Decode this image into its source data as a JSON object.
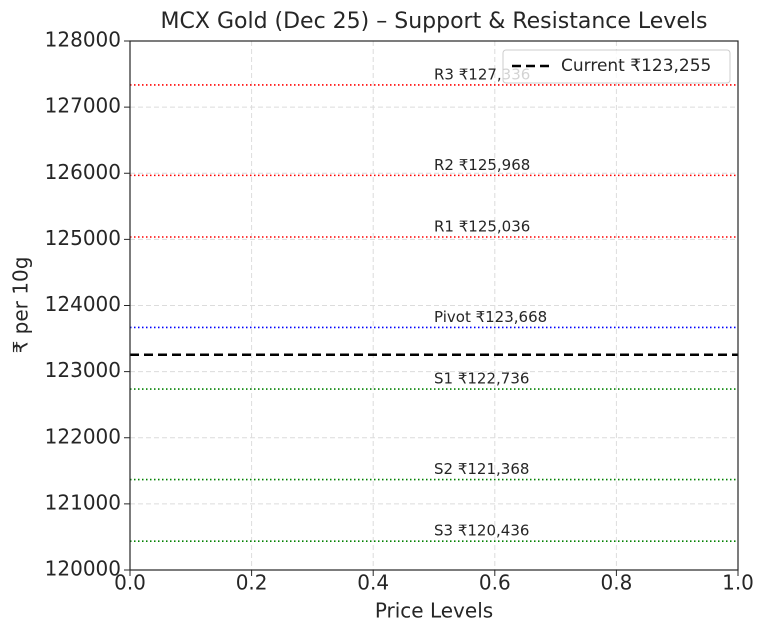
{
  "chart_data": {
    "type": "hline",
    "title": "MCX Gold (Dec 25) – Support & Resistance Levels",
    "xlabel": "Price Levels",
    "ylabel": "₹ per 10g",
    "xlim": [
      0,
      1
    ],
    "xticks": [
      {
        "value": 0,
        "label": "0.0"
      },
      0.2,
      0.4,
      0.6,
      0.8,
      {
        "value": 1,
        "label": "1.0"
      }
    ],
    "ylim": [
      120000,
      128000
    ],
    "yticks": [
      120000,
      121000,
      122000,
      123000,
      124000,
      125000,
      126000,
      127000,
      128000
    ],
    "grid": true,
    "legend": "upper right",
    "levels": [
      {
        "label": "R3 ₹127,336",
        "value": 127336,
        "color": "red"
      },
      {
        "label": "R2 ₹125,968",
        "value": 125968,
        "color": "red"
      },
      {
        "label": "R1 ₹125,036",
        "value": 125036,
        "color": "red"
      },
      {
        "label": "Pivot ₹123,668",
        "value": 123668,
        "color": "blue"
      },
      {
        "label": "S1 ₹122,736",
        "value": 122736,
        "color": "green"
      },
      {
        "label": "S2 ₹121,368",
        "value": 121368,
        "color": "green"
      },
      {
        "label": "S3 ₹120,436",
        "value": 120436,
        "color": "green"
      }
    ],
    "current": {
      "name": "Current ₹123,255",
      "value": 123255,
      "color": "black"
    }
  }
}
